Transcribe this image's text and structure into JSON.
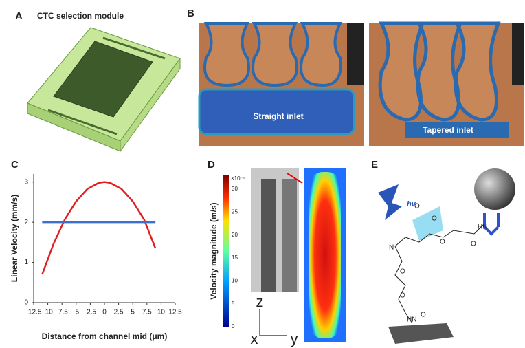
{
  "panel_a": {
    "label": "A",
    "title": "CTC selection module"
  },
  "panel_b": {
    "label": "B",
    "left_caption": "Straight inlet",
    "right_caption": "Tapered inlet"
  },
  "panel_c": {
    "label": "C"
  },
  "chart_data": {
    "type": "line",
    "xlabel": "Distance from channel mid (μm)",
    "ylabel": "Linear Velocity (mm/s)",
    "x": [
      -11,
      -9,
      -7,
      -5,
      -3,
      -1,
      0,
      1,
      3,
      5,
      7,
      9
    ],
    "series": [
      {
        "color": "#e02020",
        "values": [
          0.7,
          1.46,
          2.07,
          2.52,
          2.83,
          2.98,
          3,
          2.98,
          2.83,
          2.52,
          2.07,
          1.35
        ]
      },
      {
        "color": "#3b6fd0",
        "values": [
          2,
          2,
          2,
          2,
          2,
          2,
          2,
          2,
          2,
          2,
          2,
          2
        ]
      }
    ],
    "xlim": [
      -12.5,
      12.5
    ],
    "ylim": [
      0,
      3.2
    ],
    "xticks": [
      -12.5,
      -10,
      -7.5,
      -5,
      -2.5,
      0,
      2.5,
      5,
      7.5,
      10,
      12.5
    ],
    "yticks": [
      0,
      1,
      2,
      3
    ]
  },
  "panel_d": {
    "label": "D",
    "colorbar_label": "Velocity magnitude (m/s)",
    "colorbar_scale": "×10⁻⁴",
    "colorbar_lim": [
      0,
      33
    ],
    "colorbar_ticks": [
      0,
      5,
      10,
      15,
      20,
      25,
      30
    ],
    "axes": [
      "z",
      "x",
      "y"
    ]
  },
  "panel_e": {
    "label": "E",
    "light": "hv",
    "atoms": [
      "O",
      "O",
      "O",
      "N",
      "O",
      "O",
      "HN",
      "O",
      "HN",
      "O"
    ]
  }
}
